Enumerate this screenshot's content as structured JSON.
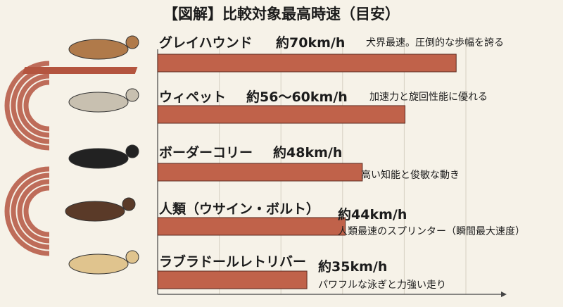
{
  "chart_data": {
    "type": "bar",
    "orientation": "horizontal",
    "title": "【図解】比較対象最高時速（目安）",
    "grid": true,
    "xlim": [
      0,
      72
    ],
    "categories": [
      "グレイハウンド",
      "ウィペット",
      "ボーダーコリー",
      "人類（ウサイン・ボルト）",
      "ラブラドールレトリバー"
    ],
    "values": [
      70,
      58,
      48,
      44,
      35
    ],
    "speed_labels": [
      "約70km/h",
      "約56〜60km/h",
      "約48km/h",
      "約44km/h",
      "約35km/h"
    ],
    "notes": [
      "犬界最速。圧倒的な歩幅を誇る",
      "加速力と旋回性能に優れる",
      "高い知能と俊敏な動き",
      "人類最速のスプリンター（瞬間最大速度）",
      "パワフルな泳ぎと力強い走り"
    ],
    "colors": {
      "bar": "#c0624a",
      "bar_border": "#5a2a20",
      "track": "#b4553f",
      "background": "#f6f2e8"
    }
  }
}
